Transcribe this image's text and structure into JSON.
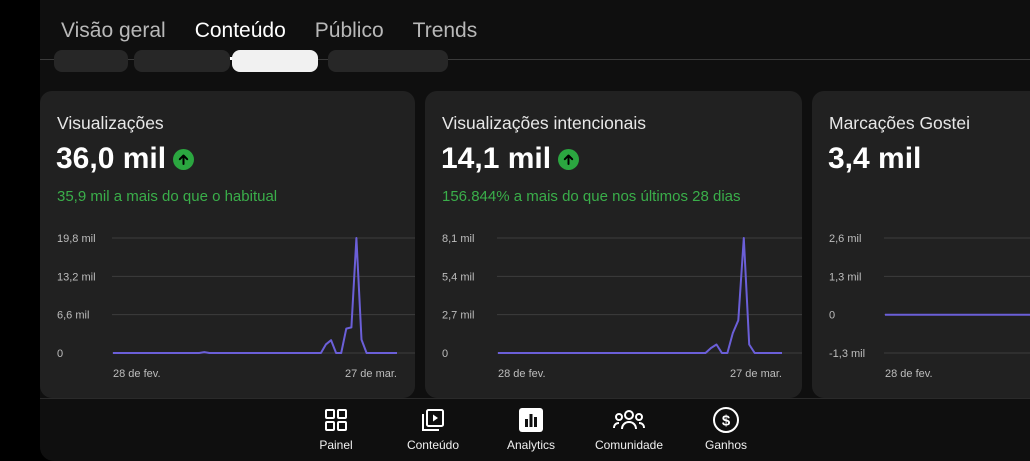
{
  "tabs": [
    {
      "label": "Visão geral"
    },
    {
      "label": "Conteúdo"
    },
    {
      "label": "Público"
    },
    {
      "label": "Trends"
    }
  ],
  "active_tab": "Conteúdo",
  "cards": [
    {
      "title": "Visualizações",
      "value": "36,0 mil",
      "trend_icon": "arrow-up-circle-icon",
      "subtitle": "35,9 mil a mais do que o habitual",
      "chart_data": {
        "type": "line",
        "yticks": [
          "19,8 mil",
          "13,2 mil",
          "6,6 mil",
          "0"
        ],
        "ylim": [
          0,
          19800
        ],
        "x_start_label": "28 de fev.",
        "x_end_label": "27 de mar.",
        "values": [
          0,
          0,
          0,
          0,
          0,
          0,
          0,
          0,
          0,
          0,
          0,
          0,
          0,
          0,
          0,
          0,
          0,
          0,
          150,
          0,
          0,
          0,
          0,
          0,
          0,
          0,
          0,
          0,
          0,
          0,
          0,
          0,
          0,
          0,
          0,
          0,
          0,
          0,
          0,
          0,
          0,
          0,
          1500,
          2200,
          0,
          0,
          4200,
          4400,
          19800,
          2300,
          0,
          0,
          0,
          0,
          0,
          0,
          0
        ]
      }
    },
    {
      "title": "Visualizações intencionais",
      "value": "14,1 mil",
      "trend_icon": "arrow-up-circle-icon",
      "subtitle": "156.844% a mais do que nos últimos 28 dias",
      "chart_data": {
        "type": "line",
        "yticks": [
          "8,1 mil",
          "5,4 mil",
          "2,7 mil",
          "0"
        ],
        "ylim": [
          0,
          8100
        ],
        "x_start_label": "28 de fev.",
        "x_end_label": "27 de mar.",
        "values": [
          0,
          0,
          0,
          0,
          0,
          0,
          0,
          0,
          0,
          0,
          0,
          0,
          0,
          0,
          0,
          0,
          0,
          0,
          0,
          0,
          0,
          0,
          0,
          0,
          0,
          0,
          0,
          0,
          0,
          0,
          0,
          0,
          0,
          0,
          0,
          0,
          0,
          0,
          0,
          350,
          600,
          0,
          0,
          1400,
          2300,
          8100,
          600,
          0,
          0,
          0,
          0,
          0,
          0
        ]
      }
    },
    {
      "title": "Marcações Gostei",
      "value": "3,4 mil",
      "trend_icon": "",
      "subtitle": "",
      "chart_data": {
        "type": "line",
        "yticks": [
          "2,6 mil",
          "1,3 mil",
          "0",
          "-1,3 mil"
        ],
        "ylim": [
          -1300,
          2600
        ],
        "x_start_label": "28 de fev.",
        "x_end_label": "",
        "values": [
          0,
          0,
          0,
          0,
          0,
          0,
          0,
          0,
          0,
          0
        ]
      }
    }
  ],
  "colors": {
    "background": "#0f0f0f",
    "card": "#212121",
    "positive": "#2ba640",
    "line": "#6b5fd8"
  },
  "bottom_nav": [
    {
      "label": "Painel",
      "icon": "dashboard-icon"
    },
    {
      "label": "Conteúdo",
      "icon": "content-icon"
    },
    {
      "label": "Analytics",
      "icon": "analytics-icon"
    },
    {
      "label": "Comunidade",
      "icon": "community-icon"
    },
    {
      "label": "Ganhos",
      "icon": "earnings-icon"
    }
  ]
}
